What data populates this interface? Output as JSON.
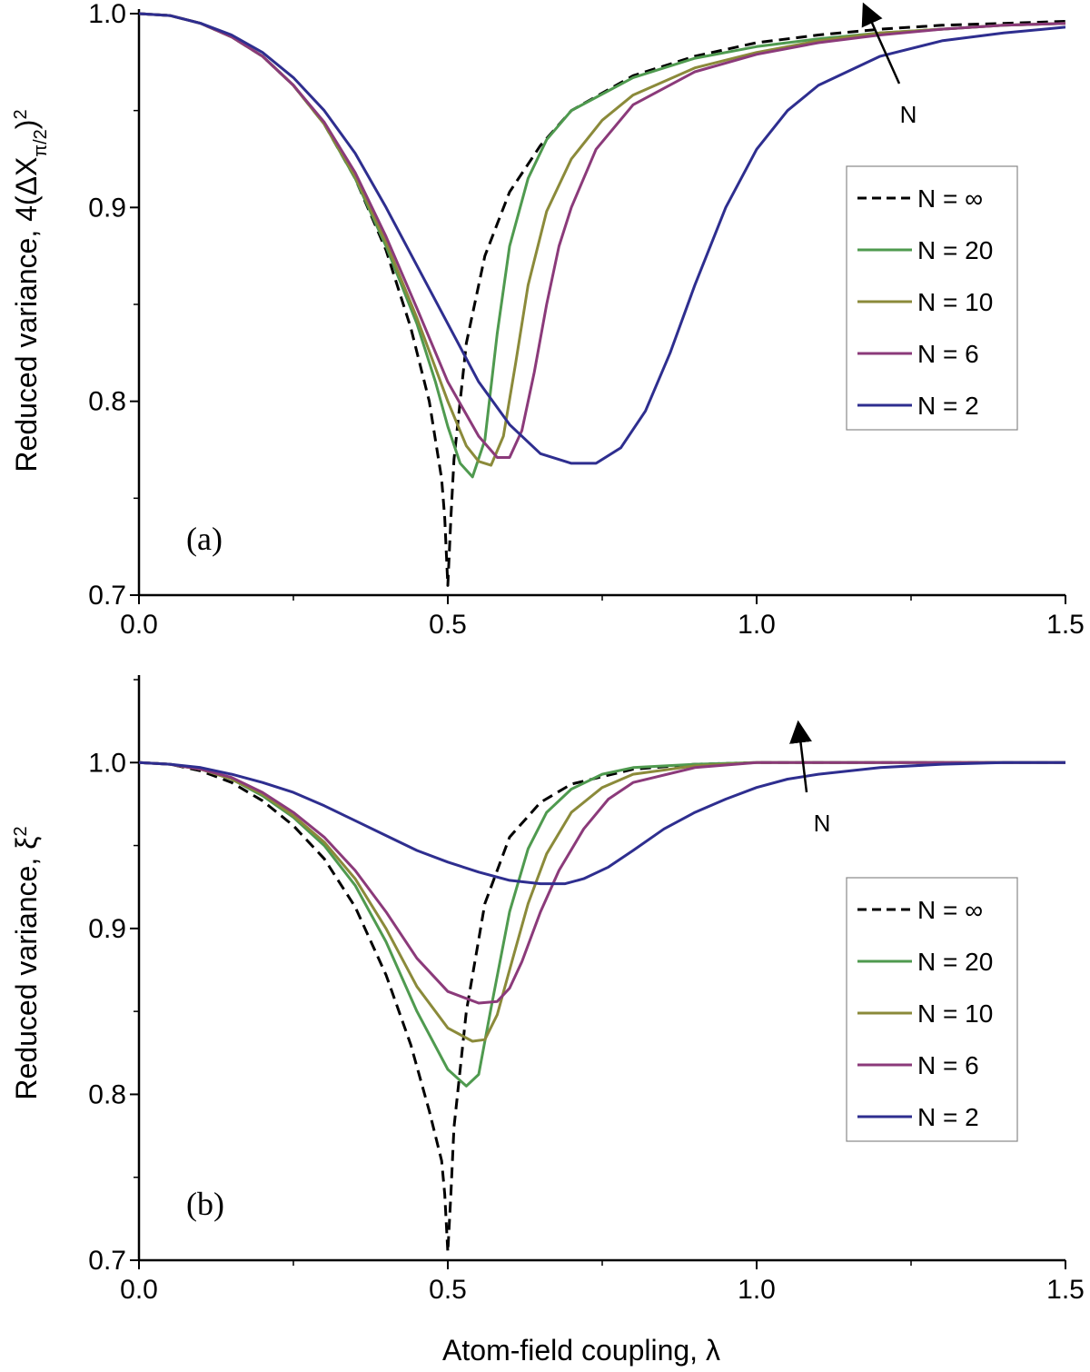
{
  "chart_data": [
    {
      "type": "line",
      "panel_label": "(a)",
      "ylabel": "Reduced variance, 4(ΔX",
      "ylabel_sub": "π/2",
      "ylabel_sup": "2",
      "ylabel_close": ")",
      "xlabel": "",
      "xlim": [
        0,
        1.5
      ],
      "ylim": [
        0.7,
        1.0
      ],
      "xticks": [
        "0.0",
        "0.5",
        "1.0",
        "1.5"
      ],
      "yticks": [
        "0.7",
        "0.8",
        "0.9",
        "1.0"
      ],
      "legend_position": "right",
      "arrow_label": "N",
      "series": [
        {
          "name": "N = ∞",
          "color": "#000000",
          "dash": true,
          "x": [
            0,
            0.05,
            0.1,
            0.15,
            0.2,
            0.25,
            0.3,
            0.35,
            0.4,
            0.44,
            0.47,
            0.49,
            0.495,
            0.5,
            0.505,
            0.51,
            0.53,
            0.56,
            0.6,
            0.65,
            0.7,
            0.8,
            0.9,
            1.0,
            1.1,
            1.2,
            1.3,
            1.4,
            1.5
          ],
          "y": [
            1.0,
            0.999,
            0.995,
            0.988,
            0.978,
            0.963,
            0.943,
            0.915,
            0.878,
            0.838,
            0.8,
            0.76,
            0.74,
            0.705,
            0.74,
            0.77,
            0.83,
            0.875,
            0.908,
            0.932,
            0.95,
            0.968,
            0.978,
            0.985,
            0.989,
            0.992,
            0.994,
            0.995,
            0.996
          ]
        },
        {
          "name": "N = 20",
          "color": "#4f9a4f",
          "dash": false,
          "x": [
            0,
            0.05,
            0.1,
            0.15,
            0.2,
            0.25,
            0.3,
            0.35,
            0.4,
            0.45,
            0.48,
            0.5,
            0.52,
            0.54,
            0.56,
            0.58,
            0.6,
            0.63,
            0.66,
            0.7,
            0.8,
            0.9,
            1.0,
            1.1,
            1.2,
            1.3,
            1.4,
            1.5
          ],
          "y": [
            1.0,
            0.999,
            0.995,
            0.988,
            0.978,
            0.963,
            0.943,
            0.915,
            0.88,
            0.84,
            0.81,
            0.787,
            0.768,
            0.761,
            0.78,
            0.835,
            0.88,
            0.915,
            0.935,
            0.95,
            0.967,
            0.977,
            0.983,
            0.987,
            0.99,
            0.992,
            0.994,
            0.995
          ]
        },
        {
          "name": "N = 10",
          "color": "#8b8a3a",
          "dash": false,
          "x": [
            0,
            0.05,
            0.1,
            0.15,
            0.2,
            0.25,
            0.3,
            0.35,
            0.4,
            0.45,
            0.5,
            0.53,
            0.55,
            0.57,
            0.59,
            0.61,
            0.63,
            0.66,
            0.7,
            0.75,
            0.8,
            0.9,
            1.0,
            1.1,
            1.2,
            1.3,
            1.4,
            1.5
          ],
          "y": [
            1.0,
            0.999,
            0.995,
            0.988,
            0.978,
            0.963,
            0.943,
            0.916,
            0.882,
            0.843,
            0.8,
            0.777,
            0.769,
            0.767,
            0.782,
            0.82,
            0.86,
            0.898,
            0.925,
            0.945,
            0.958,
            0.972,
            0.98,
            0.986,
            0.99,
            0.992,
            0.994,
            0.995
          ]
        },
        {
          "name": "N = 6",
          "color": "#8b3a7a",
          "dash": false,
          "x": [
            0,
            0.05,
            0.1,
            0.15,
            0.2,
            0.25,
            0.3,
            0.35,
            0.4,
            0.45,
            0.5,
            0.55,
            0.58,
            0.6,
            0.62,
            0.64,
            0.66,
            0.68,
            0.7,
            0.74,
            0.8,
            0.9,
            1.0,
            1.1,
            1.2,
            1.3,
            1.4,
            1.5
          ],
          "y": [
            1.0,
            0.999,
            0.995,
            0.988,
            0.978,
            0.963,
            0.944,
            0.918,
            0.885,
            0.848,
            0.81,
            0.782,
            0.771,
            0.771,
            0.785,
            0.815,
            0.85,
            0.88,
            0.9,
            0.93,
            0.953,
            0.97,
            0.979,
            0.985,
            0.989,
            0.992,
            0.994,
            0.995
          ]
        },
        {
          "name": "N = 2",
          "color": "#2e2e8f",
          "dash": false,
          "x": [
            0,
            0.05,
            0.1,
            0.15,
            0.2,
            0.25,
            0.3,
            0.35,
            0.4,
            0.45,
            0.5,
            0.55,
            0.6,
            0.65,
            0.7,
            0.74,
            0.78,
            0.82,
            0.86,
            0.9,
            0.95,
            1.0,
            1.05,
            1.1,
            1.2,
            1.3,
            1.4,
            1.5
          ],
          "y": [
            1.0,
            0.999,
            0.995,
            0.989,
            0.98,
            0.967,
            0.95,
            0.928,
            0.9,
            0.87,
            0.84,
            0.81,
            0.788,
            0.773,
            0.768,
            0.768,
            0.776,
            0.795,
            0.825,
            0.86,
            0.9,
            0.93,
            0.95,
            0.963,
            0.978,
            0.986,
            0.99,
            0.993
          ]
        }
      ]
    },
    {
      "type": "line",
      "panel_label": "(b)",
      "ylabel": "Reduced variance, ξ",
      "ylabel_sup": "2",
      "xlabel": "Atom-field coupling, λ",
      "xlim": [
        0,
        1.5
      ],
      "ylim": [
        0.7,
        1.05
      ],
      "xticks": [
        "0.0",
        "0.5",
        "1.0",
        "1.5"
      ],
      "yticks": [
        "0.7",
        "0.8",
        "0.9",
        "1.0"
      ],
      "legend_position": "right",
      "arrow_label": "N",
      "series": [
        {
          "name": "N = ∞",
          "color": "#000000",
          "dash": true,
          "x": [
            0,
            0.05,
            0.1,
            0.15,
            0.2,
            0.25,
            0.3,
            0.35,
            0.4,
            0.44,
            0.47,
            0.49,
            0.495,
            0.5,
            0.505,
            0.51,
            0.53,
            0.56,
            0.6,
            0.65,
            0.7,
            0.8,
            0.9,
            1.0,
            1.1,
            1.2,
            1.3,
            1.4,
            1.5
          ],
          "y": [
            1.0,
            0.999,
            0.995,
            0.988,
            0.977,
            0.962,
            0.942,
            0.913,
            0.872,
            0.83,
            0.79,
            0.76,
            0.74,
            0.705,
            0.74,
            0.78,
            0.85,
            0.915,
            0.955,
            0.976,
            0.987,
            0.996,
            0.999,
            1.0,
            1.0,
            1.0,
            1.0,
            1.0,
            1.0
          ]
        },
        {
          "name": "N = 20",
          "color": "#4f9a4f",
          "dash": false,
          "x": [
            0,
            0.05,
            0.1,
            0.15,
            0.2,
            0.25,
            0.3,
            0.35,
            0.4,
            0.45,
            0.5,
            0.53,
            0.55,
            0.57,
            0.6,
            0.63,
            0.66,
            0.7,
            0.75,
            0.8,
            0.9,
            1.0,
            1.1,
            1.2,
            1.3,
            1.4,
            1.5
          ],
          "y": [
            1.0,
            0.999,
            0.996,
            0.99,
            0.98,
            0.967,
            0.95,
            0.926,
            0.892,
            0.85,
            0.815,
            0.805,
            0.812,
            0.852,
            0.91,
            0.948,
            0.97,
            0.984,
            0.993,
            0.997,
            0.999,
            1.0,
            1.0,
            1.0,
            1.0,
            1.0,
            1.0
          ]
        },
        {
          "name": "N = 10",
          "color": "#8b8a3a",
          "dash": false,
          "x": [
            0,
            0.05,
            0.1,
            0.15,
            0.2,
            0.25,
            0.3,
            0.35,
            0.4,
            0.45,
            0.5,
            0.54,
            0.56,
            0.58,
            0.6,
            0.63,
            0.66,
            0.7,
            0.75,
            0.8,
            0.9,
            1.0,
            1.1,
            1.2,
            1.3,
            1.4,
            1.5
          ],
          "y": [
            1.0,
            0.999,
            0.996,
            0.99,
            0.981,
            0.968,
            0.952,
            0.93,
            0.9,
            0.865,
            0.84,
            0.832,
            0.833,
            0.848,
            0.875,
            0.915,
            0.945,
            0.97,
            0.985,
            0.993,
            0.998,
            1.0,
            1.0,
            1.0,
            1.0,
            1.0,
            1.0
          ]
        },
        {
          "name": "N = 6",
          "color": "#8b3a7a",
          "dash": false,
          "x": [
            0,
            0.05,
            0.1,
            0.15,
            0.2,
            0.25,
            0.3,
            0.35,
            0.4,
            0.45,
            0.5,
            0.55,
            0.58,
            0.6,
            0.62,
            0.65,
            0.68,
            0.72,
            0.76,
            0.8,
            0.9,
            1.0,
            1.1,
            1.2,
            1.3,
            1.4,
            1.5
          ],
          "y": [
            1.0,
            0.999,
            0.996,
            0.991,
            0.982,
            0.97,
            0.955,
            0.935,
            0.91,
            0.882,
            0.862,
            0.855,
            0.856,
            0.864,
            0.88,
            0.91,
            0.935,
            0.96,
            0.978,
            0.988,
            0.997,
            1.0,
            1.0,
            1.0,
            1.0,
            1.0,
            1.0
          ]
        },
        {
          "name": "N = 2",
          "color": "#2e2e8f",
          "dash": false,
          "x": [
            0,
            0.05,
            0.1,
            0.15,
            0.2,
            0.25,
            0.3,
            0.35,
            0.4,
            0.45,
            0.5,
            0.55,
            0.6,
            0.65,
            0.69,
            0.72,
            0.76,
            0.8,
            0.85,
            0.9,
            0.95,
            1.0,
            1.05,
            1.1,
            1.2,
            1.3,
            1.4,
            1.5
          ],
          "y": [
            1.0,
            0.999,
            0.997,
            0.993,
            0.988,
            0.982,
            0.974,
            0.965,
            0.956,
            0.947,
            0.94,
            0.934,
            0.929,
            0.927,
            0.927,
            0.93,
            0.937,
            0.947,
            0.96,
            0.97,
            0.978,
            0.985,
            0.99,
            0.993,
            0.997,
            0.999,
            1.0,
            1.0
          ]
        }
      ]
    }
  ]
}
